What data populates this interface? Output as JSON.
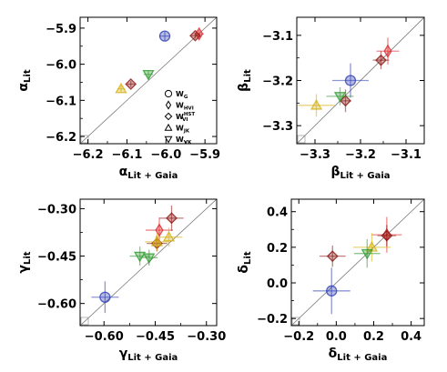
{
  "colors": {
    "W_G": "#2f3fb5",
    "W_HVI": "#e0282c",
    "W_HST": "#8a1510",
    "W_JK": "#d4b010",
    "W_VK": "#2e9b2e"
  },
  "legend": {
    "entries": [
      {
        "marker": "circle",
        "label_main": "W",
        "label_sub": "G",
        "label_sup": ""
      },
      {
        "marker": "diamond",
        "label_main": "W",
        "label_sub": "HVI",
        "label_sup": ""
      },
      {
        "marker": "diamond-wide",
        "label_main": "W",
        "label_sub": "VI",
        "label_sup": "HST"
      },
      {
        "marker": "triangle-up",
        "label_main": "W",
        "label_sub": "JK",
        "label_sup": ""
      },
      {
        "marker": "triangle-down",
        "label_main": "W",
        "label_sub": "VK",
        "label_sup": ""
      }
    ]
  },
  "chart_data": [
    {
      "type": "scatter",
      "xlabel_main": "α",
      "xlabel_sub": "Lit + Gaia",
      "ylabel_main": "α",
      "ylabel_sub": "Lit",
      "xlim": [
        -6.22,
        -5.87
      ],
      "ylim": [
        -6.22,
        -5.87
      ],
      "xticks": [
        -6.2,
        -6.1,
        -6.0,
        -5.9
      ],
      "xtick_labels": [
        "−6.2",
        "−6.1",
        "−6.0",
        "−5.9"
      ],
      "yticks": [
        -6.2,
        -6.1,
        -6.0,
        -5.9
      ],
      "ytick_labels": [
        "−6.2",
        "−6.1",
        "−6.0",
        "−5.9"
      ],
      "legend": "center-right",
      "points": [
        {
          "series": "W_G",
          "marker": "circle",
          "x": -6.003,
          "y": -5.922,
          "xerr": 0.014,
          "yerr": 0.012
        },
        {
          "series": "W_HVI",
          "marker": "diamond",
          "x": -5.915,
          "y": -5.916,
          "xerr": 0.012,
          "yerr": 0.01
        },
        {
          "series": "W_HST",
          "marker": "diamond-wide",
          "x": -5.925,
          "y": -5.921,
          "xerr": 0.01,
          "yerr": 0.008
        },
        {
          "series": "W_JK",
          "marker": "triangle-up",
          "x": -6.115,
          "y": -6.068,
          "xerr": 0.01,
          "yerr": 0.009
        },
        {
          "series": "W_VK",
          "marker": "triangle-down",
          "x": -6.045,
          "y": -6.028,
          "xerr": 0.012,
          "yerr": 0.01
        },
        {
          "series": "W_HST",
          "marker": "diamond-wide",
          "x": -6.09,
          "y": -6.055,
          "xerr": 0.01,
          "yerr": 0.008
        }
      ]
    },
    {
      "type": "scatter",
      "xlabel_main": "β",
      "xlabel_sub": "Lit + Gaia",
      "ylabel_main": "β",
      "ylabel_sub": "Lit",
      "xlim": [
        -3.34,
        -3.06
      ],
      "ylim": [
        -3.34,
        -3.06
      ],
      "xticks": [
        -3.3,
        -3.2,
        -3.1
      ],
      "xtick_labels": [
        "−3.3",
        "−3.2",
        "−3.1"
      ],
      "yticks": [
        -3.3,
        -3.2,
        -3.1
      ],
      "ytick_labels": [
        "−3.3",
        "−3.2",
        "−3.1"
      ],
      "legend": "",
      "points": [
        {
          "series": "W_G",
          "marker": "circle",
          "x": -3.222,
          "y": -3.2,
          "xerr": 0.04,
          "yerr": 0.038
        },
        {
          "series": "W_HVI",
          "marker": "diamond",
          "x": -3.14,
          "y": -3.135,
          "xerr": 0.025,
          "yerr": 0.03
        },
        {
          "series": "W_HST",
          "marker": "diamond-wide",
          "x": -3.155,
          "y": -3.155,
          "xerr": 0.018,
          "yerr": 0.02
        },
        {
          "series": "W_HST",
          "marker": "diamond-wide",
          "x": -3.233,
          "y": -3.245,
          "xerr": 0.012,
          "yerr": 0.025
        },
        {
          "series": "W_JK",
          "marker": "triangle-up",
          "x": -3.297,
          "y": -3.255,
          "xerr": 0.04,
          "yerr": 0.025
        },
        {
          "series": "W_VK",
          "marker": "triangle-down",
          "x": -3.245,
          "y": -3.235,
          "xerr": 0.03,
          "yerr": 0.02
        }
      ]
    },
    {
      "type": "scatter",
      "xlabel_main": "γ",
      "xlabel_sub": "Lit + Gaia",
      "ylabel_main": "γ",
      "ylabel_sub": "Lit",
      "xlim": [
        -0.67,
        -0.27
      ],
      "ylim": [
        -0.67,
        -0.27
      ],
      "xticks": [
        -0.6,
        -0.45,
        -0.3
      ],
      "xtick_labels": [
        "−0.60",
        "−0.45",
        "−0.30"
      ],
      "yticks": [
        -0.6,
        -0.45,
        -0.3
      ],
      "ytick_labels": [
        "−0.60",
        "−0.45",
        "−0.30"
      ],
      "legend": "",
      "points": [
        {
          "series": "W_G",
          "marker": "circle",
          "x": -0.597,
          "y": -0.58,
          "xerr": 0.04,
          "yerr": 0.05
        },
        {
          "series": "W_HVI",
          "marker": "diamond",
          "x": -0.438,
          "y": -0.368,
          "xerr": 0.04,
          "yerr": 0.04
        },
        {
          "series": "W_HST",
          "marker": "diamond-wide",
          "x": -0.402,
          "y": -0.33,
          "xerr": 0.035,
          "yerr": 0.04
        },
        {
          "series": "W_HST",
          "marker": "diamond-wide",
          "x": -0.445,
          "y": -0.41,
          "xerr": 0.03,
          "yerr": 0.025
        },
        {
          "series": "W_JK",
          "marker": "triangle-up",
          "x": -0.41,
          "y": -0.39,
          "xerr": 0.04,
          "yerr": 0.03
        },
        {
          "series": "W_JK",
          "marker": "triangle-up",
          "x": -0.445,
          "y": -0.405,
          "xerr": 0.035,
          "yerr": 0.03
        },
        {
          "series": "W_VK",
          "marker": "triangle-down",
          "x": -0.495,
          "y": -0.45,
          "xerr": 0.03,
          "yerr": 0.03
        },
        {
          "series": "W_VK",
          "marker": "triangle-down",
          "x": -0.468,
          "y": -0.455,
          "xerr": 0.025,
          "yerr": 0.025
        }
      ]
    },
    {
      "type": "scatter",
      "xlabel_main": "δ",
      "xlabel_sub": "Lit + Gaia",
      "ylabel_main": "δ",
      "ylabel_sub": "Lit",
      "xlim": [
        -0.24,
        0.47
      ],
      "ylim": [
        -0.24,
        0.47
      ],
      "xticks": [
        -0.2,
        0.0,
        0.2,
        0.4
      ],
      "xtick_labels": [
        "−0.2",
        "0.0",
        "0.2",
        "0.4"
      ],
      "yticks": [
        -0.2,
        0.0,
        0.2,
        0.4
      ],
      "ytick_labels": [
        "−0.2",
        "0.0",
        "0.2",
        "0.4"
      ],
      "legend": "",
      "points": [
        {
          "series": "W_G",
          "marker": "circle",
          "x": -0.025,
          "y": -0.045,
          "xerr": 0.1,
          "yerr": 0.13
        },
        {
          "series": "W_HVI",
          "marker": "diamond",
          "x": 0.27,
          "y": 0.27,
          "xerr": 0.08,
          "yerr": 0.1
        },
        {
          "series": "W_HST",
          "marker": "diamond-wide",
          "x": 0.27,
          "y": 0.265,
          "xerr": 0.05,
          "yerr": 0.06
        },
        {
          "series": "W_HST",
          "marker": "diamond-wide",
          "x": -0.02,
          "y": 0.15,
          "xerr": 0.07,
          "yerr": 0.06
        },
        {
          "series": "W_JK",
          "marker": "triangle-up",
          "x": 0.19,
          "y": 0.2,
          "xerr": 0.1,
          "yerr": 0.08
        },
        {
          "series": "W_VK",
          "marker": "triangle-down",
          "x": 0.165,
          "y": 0.165,
          "xerr": 0.07,
          "yerr": 0.08
        }
      ]
    }
  ]
}
